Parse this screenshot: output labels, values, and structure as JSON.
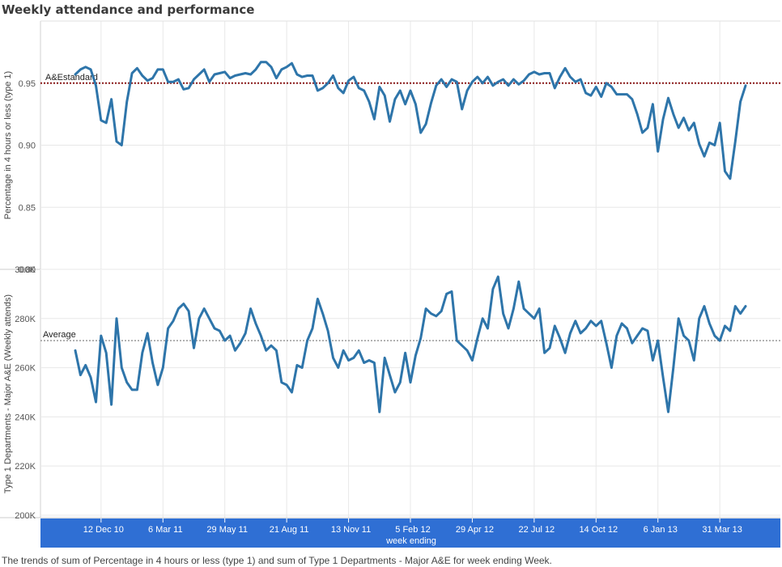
{
  "title": "Weekly attendance and performance",
  "caption": "The trends of sum of Percentage in 4 hours or less (type 1) and sum of Type 1 Departments - Major A&E for week ending Week.",
  "colors": {
    "line": "#2e75aa",
    "standard_line": "#8b1a1a",
    "average_line": "#999999",
    "axis_band": "#2f6fd4",
    "grid": "#e8e8e8"
  },
  "chart_data": [
    {
      "type": "line",
      "name": "percentage",
      "ylabel": "Percentage in 4 hours or less (type 1)",
      "yticks": [
        "0.80",
        "0.85",
        "0.90",
        "0.95"
      ],
      "ytick_values": [
        0.8,
        0.85,
        0.9,
        0.95
      ],
      "ylim": [
        0.8,
        1.0
      ],
      "reference_line": {
        "label": "A&Estandard",
        "value": 0.95
      },
      "values": [
        0.957,
        0.961,
        0.963,
        0.961,
        0.948,
        0.92,
        0.918,
        0.937,
        0.903,
        0.9,
        0.935,
        0.958,
        0.962,
        0.956,
        0.952,
        0.954,
        0.961,
        0.961,
        0.951,
        0.951,
        0.953,
        0.945,
        0.946,
        0.953,
        0.957,
        0.961,
        0.951,
        0.957,
        0.958,
        0.959,
        0.954,
        0.956,
        0.957,
        0.958,
        0.957,
        0.961,
        0.967,
        0.967,
        0.963,
        0.954,
        0.961,
        0.963,
        0.966,
        0.957,
        0.955,
        0.956,
        0.956,
        0.944,
        0.946,
        0.95,
        0.956,
        0.946,
        0.942,
        0.952,
        0.955,
        0.946,
        0.944,
        0.935,
        0.921,
        0.947,
        0.94,
        0.919,
        0.937,
        0.944,
        0.933,
        0.944,
        0.933,
        0.91,
        0.917,
        0.934,
        0.948,
        0.953,
        0.947,
        0.953,
        0.951,
        0.929,
        0.944,
        0.951,
        0.955,
        0.95,
        0.955,
        0.948,
        0.951,
        0.953,
        0.948,
        0.953,
        0.949,
        0.952,
        0.957,
        0.959,
        0.957,
        0.958,
        0.958,
        0.946,
        0.955,
        0.962,
        0.955,
        0.951,
        0.953,
        0.942,
        0.94,
        0.947,
        0.939,
        0.95,
        0.947,
        0.941,
        0.941,
        0.941,
        0.937,
        0.925,
        0.91,
        0.914,
        0.933,
        0.895,
        0.921,
        0.938,
        0.925,
        0.914,
        0.922,
        0.912,
        0.918,
        0.901,
        0.891,
        0.902,
        0.9,
        0.918,
        0.879,
        0.873,
        0.903,
        0.935,
        0.948
      ]
    },
    {
      "type": "line",
      "name": "attendances",
      "ylabel": "Type 1 Departments - Major A&E (Weekly attends)",
      "yticks": [
        "200K",
        "220K",
        "240K",
        "260K",
        "280K",
        "300K"
      ],
      "ytick_values": [
        200000,
        220000,
        240000,
        260000,
        280000,
        300000
      ],
      "ylim": [
        199000,
        300000
      ],
      "reference_line": {
        "label": "Average",
        "value": 271000
      },
      "values": [
        267000,
        257000,
        261000,
        256000,
        246000,
        273000,
        266000,
        245000,
        280000,
        260000,
        254000,
        251000,
        251000,
        266000,
        274000,
        262000,
        253000,
        260000,
        276000,
        279000,
        284000,
        286000,
        283000,
        268000,
        280000,
        284000,
        280000,
        276000,
        275000,
        271000,
        273000,
        267000,
        270000,
        274000,
        284000,
        278000,
        273000,
        267000,
        269000,
        267000,
        254000,
        253000,
        250000,
        261000,
        260000,
        271000,
        276000,
        288000,
        282000,
        275000,
        264000,
        260000,
        267000,
        263000,
        264000,
        267000,
        262000,
        263000,
        262000,
        242000,
        264000,
        257000,
        250000,
        254000,
        266000,
        254000,
        265000,
        272000,
        284000,
        282000,
        281000,
        283000,
        290000,
        291000,
        271000,
        269000,
        267000,
        263000,
        272000,
        280000,
        276000,
        292000,
        297000,
        282000,
        276000,
        284000,
        295000,
        284000,
        282000,
        280000,
        284000,
        266000,
        268000,
        277000,
        272000,
        266000,
        274000,
        279000,
        274000,
        276000,
        279000,
        277000,
        279000,
        270000,
        260000,
        273000,
        278000,
        276000,
        270000,
        273000,
        276000,
        275000,
        263000,
        271000,
        256000,
        242000,
        260000,
        280000,
        273000,
        271000,
        263000,
        280000,
        285000,
        278000,
        273000,
        271000,
        277000,
        275000,
        285000,
        282000,
        285000
      ]
    }
  ],
  "x_axis": {
    "title": "week ending",
    "ticks": [
      {
        "label": "12 Dec 10",
        "index": 5
      },
      {
        "label": "6 Mar 11",
        "index": 17
      },
      {
        "label": "29 May 11",
        "index": 29
      },
      {
        "label": "21 Aug 11",
        "index": 41
      },
      {
        "label": "13 Nov 11",
        "index": 53
      },
      {
        "label": "5 Feb 12",
        "index": 65
      },
      {
        "label": "29 Apr 12",
        "index": 77
      },
      {
        "label": "22 Jul 12",
        "index": 89
      },
      {
        "label": "14 Oct 12",
        "index": 101
      },
      {
        "label": "6 Jan 13",
        "index": 113
      },
      {
        "label": "31 Mar 13",
        "index": 125
      }
    ]
  }
}
